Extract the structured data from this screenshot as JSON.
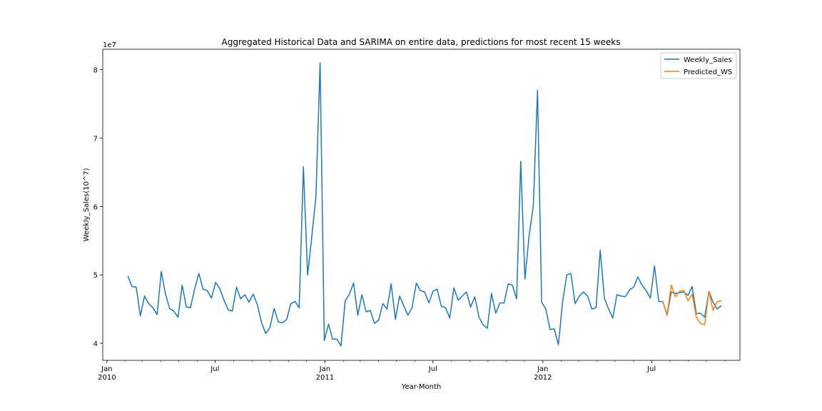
{
  "chart_data": {
    "type": "line",
    "title": "Aggregated Historical Data and SARIMA on entire data, predictions for most recent 15 weeks",
    "xlabel": "Year-Month",
    "ylabel": "Weekly_Sales(10^7)",
    "y_offset_label": "1e7",
    "ylim": [
      3.75,
      8.3
    ],
    "xlim": [
      "2009-12-25",
      "2012-11-26"
    ],
    "grid": false,
    "legend_position": "top-right",
    "x_ticks": [
      {
        "date": "2010-01-01",
        "label": "Jan",
        "sublabel": "2010"
      },
      {
        "date": "2010-07-01",
        "label": "Jul",
        "sublabel": ""
      },
      {
        "date": "2011-01-01",
        "label": "Jan",
        "sublabel": "2011"
      },
      {
        "date": "2011-07-01",
        "label": "Jul",
        "sublabel": ""
      },
      {
        "date": "2012-01-01",
        "label": "Jan",
        "sublabel": "2012"
      },
      {
        "date": "2012-07-01",
        "label": "Jul",
        "sublabel": ""
      }
    ],
    "y_ticks": [
      4,
      5,
      6,
      7,
      8
    ],
    "series": [
      {
        "name": "Weekly_Sales",
        "color": "#1f77b4",
        "start_date": "2010-02-05",
        "values": [
          4.98,
          4.83,
          4.82,
          4.4,
          4.69,
          4.58,
          4.52,
          4.42,
          5.05,
          4.72,
          4.51,
          4.47,
          4.38,
          4.85,
          4.53,
          4.52,
          4.8,
          5.02,
          4.79,
          4.77,
          4.66,
          4.89,
          4.8,
          4.63,
          4.49,
          4.47,
          4.82,
          4.65,
          4.71,
          4.6,
          4.72,
          4.56,
          4.3,
          4.14,
          4.23,
          4.51,
          4.31,
          4.3,
          4.35,
          4.58,
          4.61,
          4.52,
          6.58,
          5.0,
          5.55,
          6.15,
          8.1,
          4.04,
          4.28,
          4.06,
          4.06,
          3.96,
          4.62,
          4.72,
          4.88,
          4.41,
          4.71,
          4.46,
          4.48,
          4.29,
          4.34,
          4.58,
          4.5,
          4.87,
          4.35,
          4.69,
          4.55,
          4.41,
          4.52,
          4.88,
          4.77,
          4.75,
          4.59,
          4.76,
          4.79,
          4.54,
          4.52,
          4.37,
          4.81,
          4.63,
          4.69,
          4.75,
          4.53,
          4.68,
          4.38,
          4.27,
          4.22,
          4.73,
          4.44,
          4.59,
          4.59,
          4.87,
          4.85,
          4.65,
          6.66,
          4.94,
          5.58,
          6.0,
          7.7,
          4.6,
          4.5,
          4.2,
          4.21,
          3.98,
          4.6,
          5.0,
          5.02,
          4.58,
          4.69,
          4.75,
          4.69,
          4.5,
          4.52,
          5.36,
          4.66,
          4.5,
          4.37,
          4.71,
          4.69,
          4.68,
          4.78,
          4.82,
          4.97,
          4.85,
          4.77,
          4.66,
          5.13,
          4.61,
          4.61,
          4.41,
          4.75,
          4.73,
          4.74,
          4.75,
          4.7,
          4.83,
          4.43,
          4.44,
          4.38,
          4.76,
          4.6,
          4.5,
          4.55
        ]
      },
      {
        "name": "Predicted_WS",
        "color": "#ff7f0e",
        "start_date": "2012-07-20",
        "values": [
          4.61,
          4.42,
          4.85,
          4.68,
          4.76,
          4.77,
          4.62,
          4.72,
          4.38,
          4.29,
          4.27,
          4.76,
          4.48,
          4.61,
          4.62
        ]
      }
    ]
  }
}
